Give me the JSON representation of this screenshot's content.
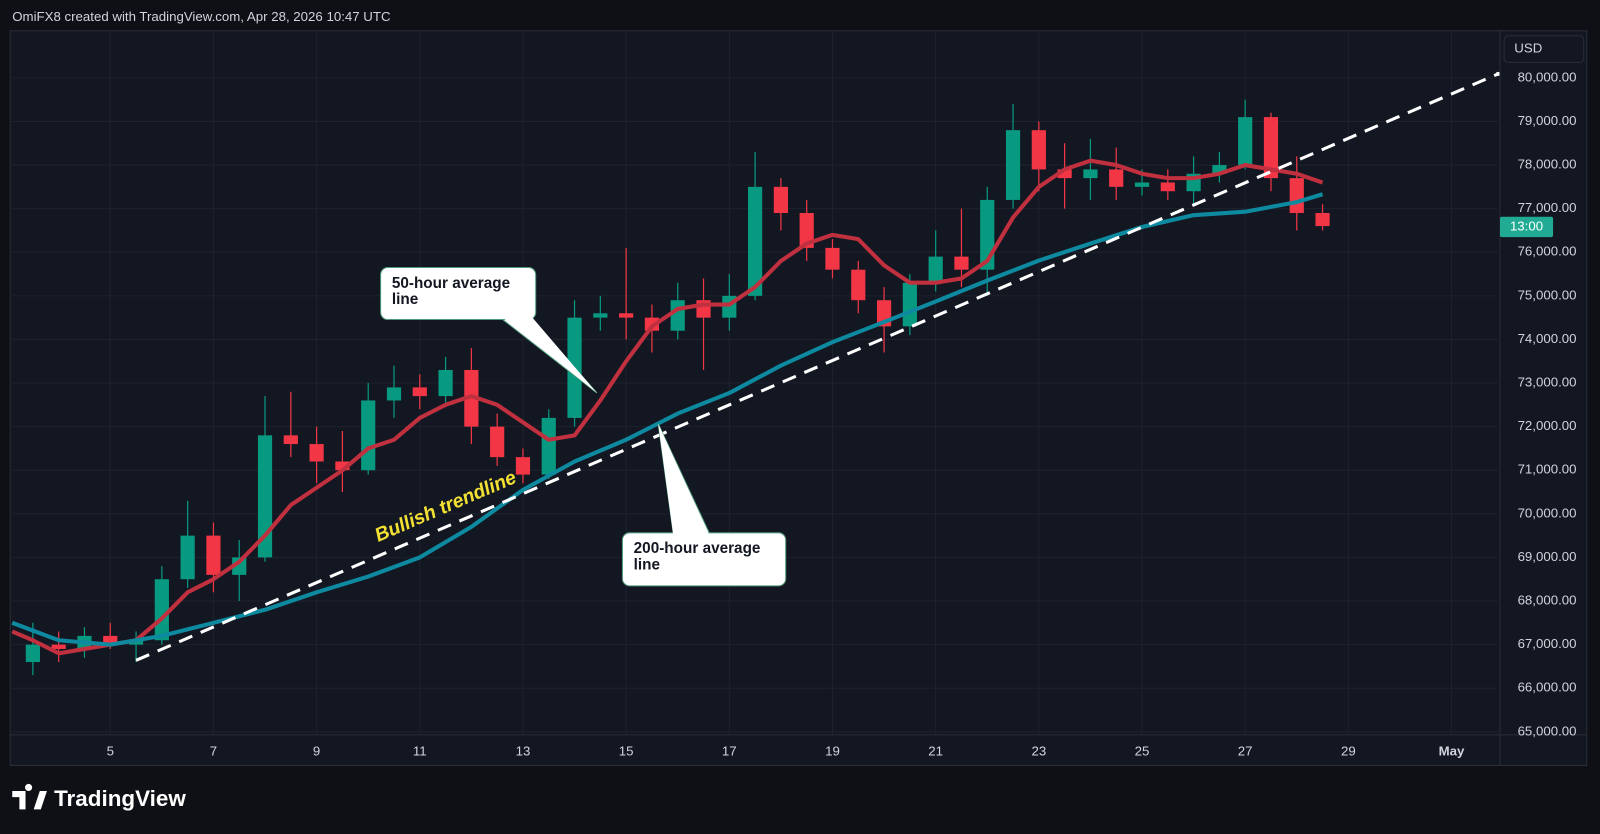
{
  "header": {
    "text": "OmiFX8 created with TradingView.com, Apr 28, 2026 10:47 UTC"
  },
  "footer": {
    "logo": "TradingView"
  },
  "chart_data": {
    "type": "candlestick",
    "currency": "USD",
    "x": [
      3.5,
      4,
      4.5,
      5,
      5.5,
      6,
      6.5,
      7,
      7.5,
      8,
      8.5,
      9,
      9.5,
      10,
      10.5,
      11,
      11.5,
      12,
      12.5,
      13,
      13.5,
      14,
      14.5,
      15,
      15.5,
      16,
      16.5,
      17,
      17.5,
      18,
      18.5,
      19,
      19.5,
      20,
      20.5,
      21,
      21.5,
      22,
      22.5,
      23,
      23.5,
      24,
      24.5,
      25,
      25.5,
      26,
      26.5,
      27,
      27.5,
      28,
      28.5
    ],
    "open": [
      66600,
      67000,
      66900,
      67200,
      67000,
      67100,
      68500,
      69500,
      68600,
      69000,
      71800,
      71600,
      71200,
      71000,
      72600,
      72900,
      72700,
      73300,
      72000,
      71300,
      70900,
      72200,
      74500,
      74600,
      74500,
      74200,
      74900,
      74500,
      75000,
      77500,
      76900,
      76100,
      75600,
      74900,
      74300,
      75300,
      75900,
      75600,
      77200,
      78800,
      77900,
      77700,
      77900,
      77500,
      77600,
      77400,
      77800,
      78000,
      79100,
      77700,
      76900
    ],
    "high": [
      67500,
      67300,
      67400,
      67500,
      67300,
      68800,
      70300,
      69800,
      69400,
      72700,
      72800,
      72000,
      71900,
      73000,
      73400,
      73200,
      73600,
      73800,
      72300,
      71500,
      72400,
      74900,
      75000,
      76100,
      74800,
      75300,
      75400,
      75500,
      78300,
      77700,
      77200,
      76300,
      75800,
      75200,
      75500,
      76500,
      77000,
      77500,
      79400,
      79000,
      78500,
      78600,
      78400,
      77900,
      77900,
      78200,
      78300,
      79500,
      79200,
      78200,
      77100
    ],
    "low": [
      66300,
      66600,
      66700,
      66900,
      66600,
      67000,
      68300,
      68200,
      68000,
      68900,
      71300,
      70700,
      70500,
      70900,
      72200,
      72400,
      72500,
      71600,
      71100,
      70700,
      70800,
      72000,
      74200,
      74000,
      73700,
      74000,
      73300,
      74200,
      74900,
      76500,
      75800,
      75400,
      74600,
      73700,
      74100,
      75100,
      75200,
      75000,
      77000,
      77400,
      77000,
      77200,
      77200,
      77300,
      77200,
      77100,
      77600,
      77900,
      77400,
      76500,
      76500
    ],
    "close": [
      67000,
      66900,
      67200,
      67000,
      67100,
      68500,
      69500,
      68600,
      69000,
      71800,
      71600,
      71200,
      71000,
      72600,
      72900,
      72700,
      73300,
      72000,
      71300,
      70900,
      72200,
      74500,
      74600,
      74500,
      74200,
      74900,
      74500,
      75000,
      77500,
      76900,
      76100,
      75600,
      74900,
      74300,
      75300,
      75900,
      75600,
      77200,
      78800,
      77900,
      77700,
      77900,
      77500,
      77600,
      77400,
      77800,
      78000,
      79100,
      77700,
      76900,
      76600
    ],
    "up_color": "#089981",
    "down_color": "#f23645",
    "overlays": [
      {
        "color": "#c0303f",
        "x": [
          3.1,
          3.5,
          4,
          4.5,
          5,
          5.5,
          6,
          6.5,
          7,
          7.5,
          8,
          8.5,
          9,
          9.5,
          10,
          10.5,
          11,
          11.5,
          12,
          12.5,
          13,
          13.5,
          14,
          14.5,
          15,
          15.5,
          16,
          16.5,
          17,
          17.5,
          18,
          18.5,
          19,
          19.5,
          20,
          20.5,
          21,
          21.5,
          22,
          22.5,
          23,
          23.5,
          24,
          24.5,
          25,
          25.5,
          26,
          26.5,
          27,
          27.5,
          28,
          28.5
        ],
        "values": [
          67300,
          67100,
          66800,
          66900,
          67000,
          67100,
          67600,
          68200,
          68500,
          68900,
          69500,
          70200,
          70600,
          71000,
          71500,
          71700,
          72200,
          72500,
          72700,
          72500,
          72100,
          71700,
          71800,
          72600,
          73500,
          74300,
          74700,
          74800,
          74800,
          75200,
          75800,
          76200,
          76400,
          76300,
          75700,
          75300,
          75300,
          75400,
          75800,
          76800,
          77500,
          77900,
          78100,
          78000,
          77800,
          77700,
          77700,
          77800,
          78000,
          77900,
          77800,
          77600
        ]
      },
      {
        "color": "#0e8aa0",
        "x": [
          3.1,
          4,
          5,
          6,
          7,
          8,
          9,
          10,
          11,
          12,
          13,
          14,
          15,
          16,
          17,
          18,
          19,
          20,
          21,
          22,
          23,
          24,
          25,
          26,
          27,
          28,
          28.5
        ],
        "values": [
          67500,
          67100,
          67000,
          67200,
          67500,
          67800,
          68200,
          68560,
          69000,
          69700,
          70550,
          71200,
          71700,
          72300,
          72770,
          73400,
          73940,
          74400,
          74870,
          75350,
          75810,
          76200,
          76580,
          76850,
          76930,
          77150,
          77330
        ]
      }
    ],
    "trendline": {
      "label": "Bullish trendline",
      "color": "#ffffff",
      "label_color": "#f2e033",
      "x": [
        5.5,
        31.9
      ],
      "values": [
        66640,
        80090
      ]
    },
    "callouts": [
      {
        "text": "50-hour average line"
      },
      {
        "text": "200-hour average line"
      }
    ],
    "price_badge": {
      "label": "13:00",
      "value": 76580,
      "color": "#22ab94"
    },
    "xlim": [
      3.1,
      31.9
    ],
    "xticks": [
      5,
      7,
      9,
      11,
      13,
      15,
      17,
      19,
      21,
      23,
      25,
      27,
      29,
      {
        "value": 31,
        "label": "May"
      }
    ],
    "ylim": [
      64930,
      81080
    ],
    "yticks": [
      {
        "value": 65000,
        "label": "65,000.00"
      },
      {
        "value": 66000,
        "label": "66,000.00"
      },
      {
        "value": 67000,
        "label": "67,000.00"
      },
      {
        "value": 68000,
        "label": "68,000.00"
      },
      {
        "value": 69000,
        "label": "69,000.00"
      },
      {
        "value": 70000,
        "label": "70,000.00"
      },
      {
        "value": 71000,
        "label": "71,000.00"
      },
      {
        "value": 72000,
        "label": "72,000.00"
      },
      {
        "value": 73000,
        "label": "73,000.00"
      },
      {
        "value": 74000,
        "label": "74,000.00"
      },
      {
        "value": 75000,
        "label": "75,000.00"
      },
      {
        "value": 76000,
        "label": "76,000.00"
      },
      {
        "value": 77000,
        "label": "77,000.00"
      },
      {
        "value": 78000,
        "label": "78,000.00"
      },
      {
        "value": 79000,
        "label": "79,000.00"
      },
      {
        "value": 80000,
        "label": "80,000.00"
      }
    ],
    "grid": true
  }
}
